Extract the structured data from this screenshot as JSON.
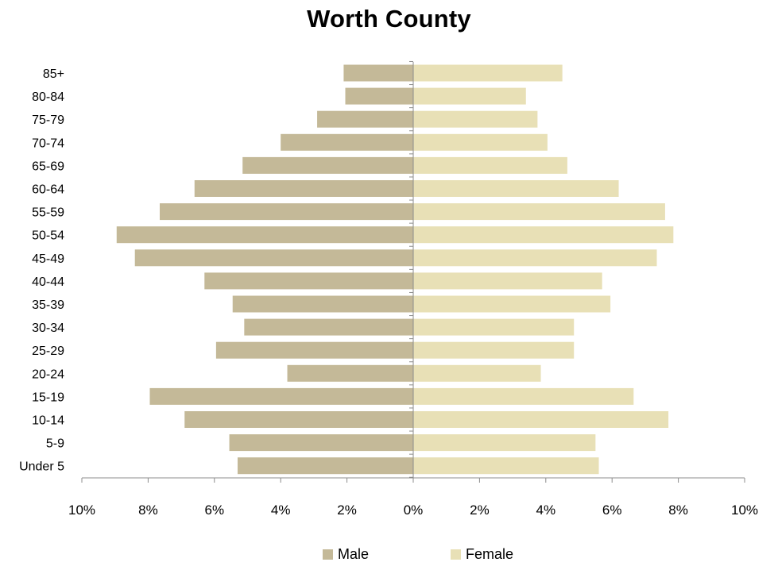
{
  "chart_data": {
    "type": "bar",
    "orientation": "horizontal",
    "title": "Worth County",
    "categories": [
      "Under 5",
      "5-9",
      "10-14",
      "15-19",
      "20-24",
      "25-29",
      "30-34",
      "35-39",
      "40-44",
      "45-49",
      "50-54",
      "55-59",
      "60-64",
      "65-69",
      "70-74",
      "75-79",
      "80-84",
      "85+"
    ],
    "series": [
      {
        "name": "Male",
        "color": "#c4b998",
        "direction": "left",
        "values": [
          5.3,
          5.55,
          6.9,
          7.95,
          3.8,
          5.95,
          5.1,
          5.45,
          6.3,
          8.4,
          8.95,
          7.65,
          6.6,
          5.15,
          4.0,
          2.9,
          2.05,
          2.1
        ]
      },
      {
        "name": "Female",
        "color": "#e8e0b6",
        "direction": "right",
        "values": [
          5.6,
          5.5,
          7.7,
          6.65,
          3.85,
          4.85,
          4.85,
          5.95,
          5.7,
          7.35,
          7.85,
          7.6,
          6.2,
          4.65,
          4.05,
          3.75,
          3.4,
          4.5
        ]
      }
    ],
    "xlim": [
      -10,
      10
    ],
    "xticks": [
      -10,
      -8,
      -6,
      -4,
      -2,
      0,
      2,
      4,
      6,
      8,
      10
    ],
    "xtick_labels": [
      "10%",
      "8%",
      "6%",
      "4%",
      "2%",
      "0%",
      "2%",
      "4%",
      "6%",
      "8%",
      "10%"
    ],
    "xlabel": "",
    "ylabel": "",
    "grid": false,
    "legend_position": "bottom"
  }
}
